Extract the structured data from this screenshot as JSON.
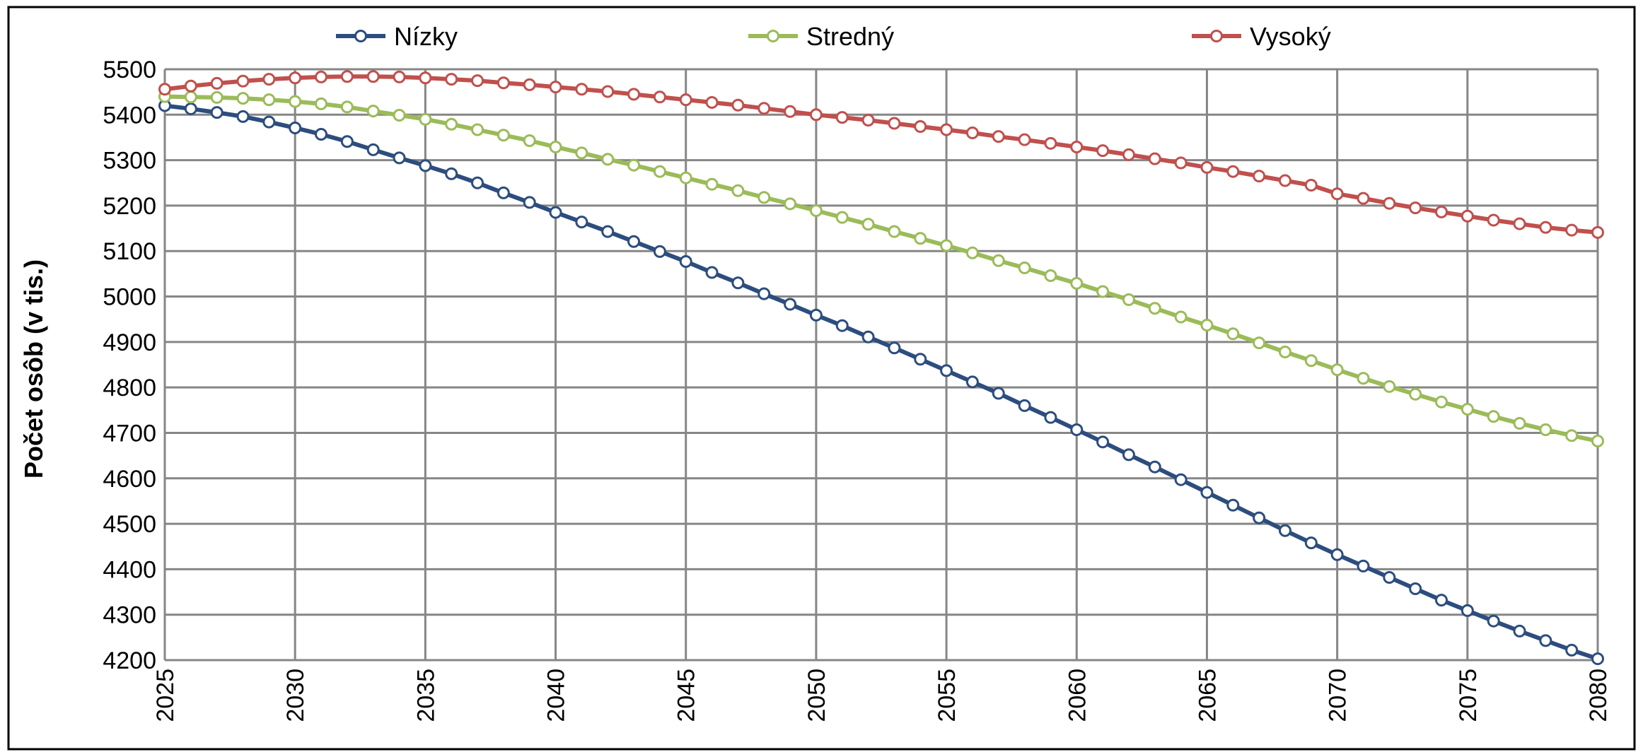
{
  "chart_data": {
    "type": "line",
    "title": "",
    "xlabel": "",
    "ylabel": "Počet osôb (v tis.)",
    "xlim": [
      2025,
      2080
    ],
    "ylim": [
      4200,
      5500
    ],
    "x_ticks": [
      "2025",
      "2030",
      "2035",
      "2040",
      "2045",
      "2050",
      "2055",
      "2060",
      "2065",
      "2070",
      "2075",
      "2080"
    ],
    "y_ticks": [
      "4200",
      "4300",
      "4400",
      "4500",
      "4600",
      "4700",
      "4800",
      "4900",
      "5000",
      "5100",
      "5200",
      "5300",
      "5400",
      "5500"
    ],
    "grid": true,
    "legend_position": "top",
    "x": [
      2025,
      2026,
      2027,
      2028,
      2029,
      2030,
      2031,
      2032,
      2033,
      2034,
      2035,
      2036,
      2037,
      2038,
      2039,
      2040,
      2041,
      2042,
      2043,
      2044,
      2045,
      2046,
      2047,
      2048,
      2049,
      2050,
      2051,
      2052,
      2053,
      2054,
      2055,
      2056,
      2057,
      2058,
      2059,
      2060,
      2061,
      2062,
      2063,
      2064,
      2065,
      2066,
      2067,
      2068,
      2069,
      2070,
      2071,
      2072,
      2073,
      2074,
      2075,
      2076,
      2077,
      2078,
      2079,
      2080
    ],
    "series": [
      {
        "name": "Nízky",
        "color": "#2C4D7E",
        "values": [
          5420,
          5413,
          5405,
          5396,
          5384,
          5371,
          5357,
          5341,
          5323,
          5305,
          5288,
          5270,
          5250,
          5228,
          5207,
          5185,
          5164,
          5143,
          5121,
          5099,
          5077,
          5053,
          5030,
          5006,
          4983,
          4959,
          4936,
          4911,
          4887,
          4862,
          4837,
          4812,
          4787,
          4760,
          4734,
          4707,
          4680,
          4652,
          4625,
          4597,
          4569,
          4541,
          4513,
          4485,
          4458,
          4432,
          4407,
          4382,
          4357,
          4332,
          4309,
          4286,
          4264,
          4243,
          4222,
          4203
        ]
      },
      {
        "name": "Stredný",
        "color": "#9BBB59",
        "values": [
          5440,
          5439,
          5438,
          5436,
          5433,
          5429,
          5424,
          5417,
          5408,
          5399,
          5390,
          5379,
          5367,
          5355,
          5343,
          5329,
          5316,
          5302,
          5289,
          5275,
          5261,
          5247,
          5233,
          5218,
          5204,
          5189,
          5174,
          5159,
          5143,
          5128,
          5112,
          5096,
          5079,
          5063,
          5046,
          5029,
          5011,
          4993,
          4974,
          4955,
          4937,
          4918,
          4898,
          4878,
          4859,
          4839,
          4820,
          4802,
          4785,
          4768,
          4752,
          4736,
          4721,
          4707,
          4694,
          4682
        ]
      },
      {
        "name": "Vysoký",
        "color": "#C0504D",
        "values": [
          5456,
          5463,
          5469,
          5474,
          5478,
          5481,
          5483,
          5484,
          5484,
          5483,
          5481,
          5478,
          5475,
          5470,
          5466,
          5461,
          5456,
          5451,
          5445,
          5439,
          5433,
          5427,
          5421,
          5414,
          5407,
          5400,
          5394,
          5388,
          5381,
          5374,
          5367,
          5360,
          5352,
          5345,
          5337,
          5329,
          5321,
          5312,
          5303,
          5294,
          5284,
          5275,
          5265,
          5255,
          5245,
          5226,
          5216,
          5205,
          5195,
          5186,
          5177,
          5168,
          5160,
          5152,
          5146,
          5141
        ]
      }
    ]
  }
}
